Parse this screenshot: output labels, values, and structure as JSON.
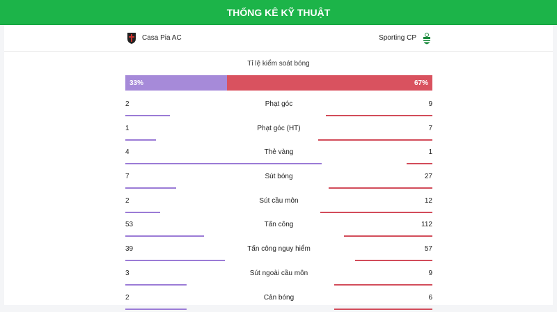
{
  "header": {
    "title": "THỐNG KÊ KỸ THUẬT"
  },
  "teams": {
    "home": "Casa Pia AC",
    "away": "Sporting CP"
  },
  "possession": {
    "label": "Tỉ lệ kiểm soát bóng",
    "home": "33%",
    "away": "67%",
    "home_pct": 33,
    "away_pct": 67
  },
  "colors": {
    "header": "#1cb449",
    "home": "#9b7bd6",
    "away": "#d24c5a"
  },
  "stats": [
    {
      "label": "Phạt góc",
      "home": "2",
      "away": "9"
    },
    {
      "label": "Phạt góc (HT)",
      "home": "1",
      "away": "7"
    },
    {
      "label": "Thẻ vàng",
      "home": "4",
      "away": "1"
    },
    {
      "label": "Sút bóng",
      "home": "7",
      "away": "27"
    },
    {
      "label": "Sút cầu môn",
      "home": "2",
      "away": "12"
    },
    {
      "label": "Tấn công",
      "home": "53",
      "away": "112"
    },
    {
      "label": "Tấn công nguy hiểm",
      "home": "39",
      "away": "57"
    },
    {
      "label": "Sút ngoài cầu môn",
      "home": "3",
      "away": "9"
    },
    {
      "label": "Cản bóng",
      "home": "2",
      "away": "6"
    }
  ]
}
